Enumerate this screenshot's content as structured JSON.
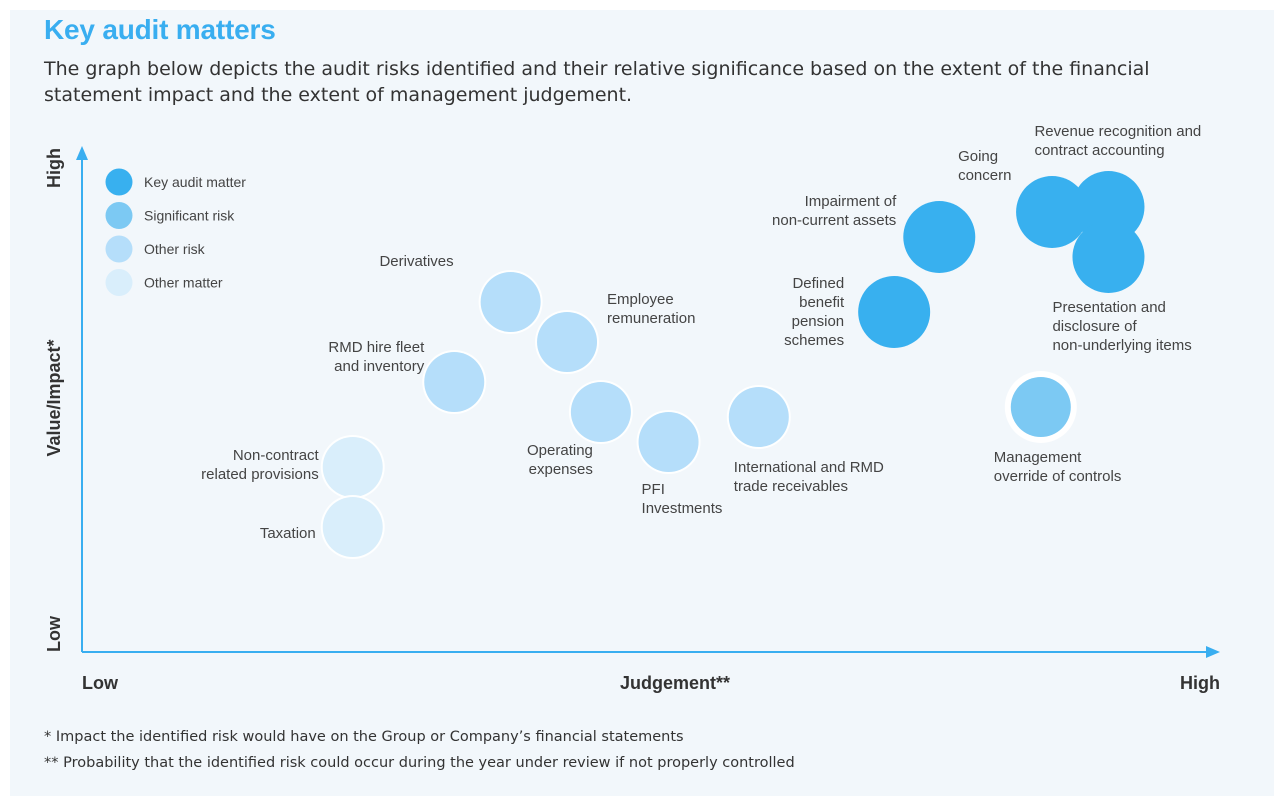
{
  "header": {
    "title": "Key audit matters",
    "subtitle": "The graph below depicts the audit risks identified and their relative significance based on the extent of the financial statement impact and the extent of management judgement."
  },
  "chart_data": {
    "type": "scatter",
    "xlabel": "Judgement**",
    "ylabel": "Value/Impact*",
    "x_ticks": {
      "low": "Low",
      "high": "High"
    },
    "y_ticks": {
      "low": "Low",
      "high": "High"
    },
    "xlim": [
      0,
      100
    ],
    "ylim": [
      0,
      100
    ],
    "legend_position": "top-left",
    "categories": [
      {
        "key": "kam",
        "label": "Key audit matter",
        "color": "#38b0ef"
      },
      {
        "key": "sig",
        "label": "Significant risk",
        "color": "#7cc9f3"
      },
      {
        "key": "other",
        "label": "Other risk",
        "color": "#b5defa"
      },
      {
        "key": "matter",
        "label": "Other matter",
        "color": "#d9eefb"
      }
    ],
    "points": [
      {
        "label": [
          "Revenue recognition and",
          "contract accounting"
        ],
        "category": "kam",
        "x": 91,
        "y": 89
      },
      {
        "label": [
          "Going",
          "concern"
        ],
        "category": "kam",
        "x": 86,
        "y": 88
      },
      {
        "label": [
          "Presentation and",
          "disclosure of",
          "non-underlying items"
        ],
        "category": "kam",
        "x": 91,
        "y": 79
      },
      {
        "label": [
          "Impairment of",
          "non-current assets"
        ],
        "category": "kam",
        "x": 76,
        "y": 83
      },
      {
        "label": [
          "Defined",
          "benefit",
          "pension",
          "schemes"
        ],
        "category": "kam",
        "x": 72,
        "y": 68
      },
      {
        "label": [
          "Management",
          "override of controls"
        ],
        "category": "sig",
        "x": 85,
        "y": 49
      },
      {
        "label": [
          "Derivatives"
        ],
        "category": "other",
        "x": 38,
        "y": 70
      },
      {
        "label": [
          "Employee",
          "remuneration"
        ],
        "category": "other",
        "x": 43,
        "y": 62
      },
      {
        "label": [
          "RMD hire fleet",
          "and inventory"
        ],
        "category": "other",
        "x": 33,
        "y": 54
      },
      {
        "label": [
          "Operating",
          "expenses"
        ],
        "category": "other",
        "x": 46,
        "y": 48
      },
      {
        "label": [
          "PFI",
          "Investments"
        ],
        "category": "other",
        "x": 52,
        "y": 42
      },
      {
        "label": [
          "International and RMD",
          "trade receivables"
        ],
        "category": "other",
        "x": 60,
        "y": 47
      },
      {
        "label": [
          "Non-contract",
          "related provisions"
        ],
        "category": "matter",
        "x": 24,
        "y": 37
      },
      {
        "label": [
          "Taxation"
        ],
        "category": "matter",
        "x": 24,
        "y": 25
      }
    ]
  },
  "footnotes": {
    "impact": "*  Impact the identified risk would have on the Group or Company’s financial statements",
    "probability": "** Probability that the identified risk could occur during the year under review if not properly controlled"
  }
}
